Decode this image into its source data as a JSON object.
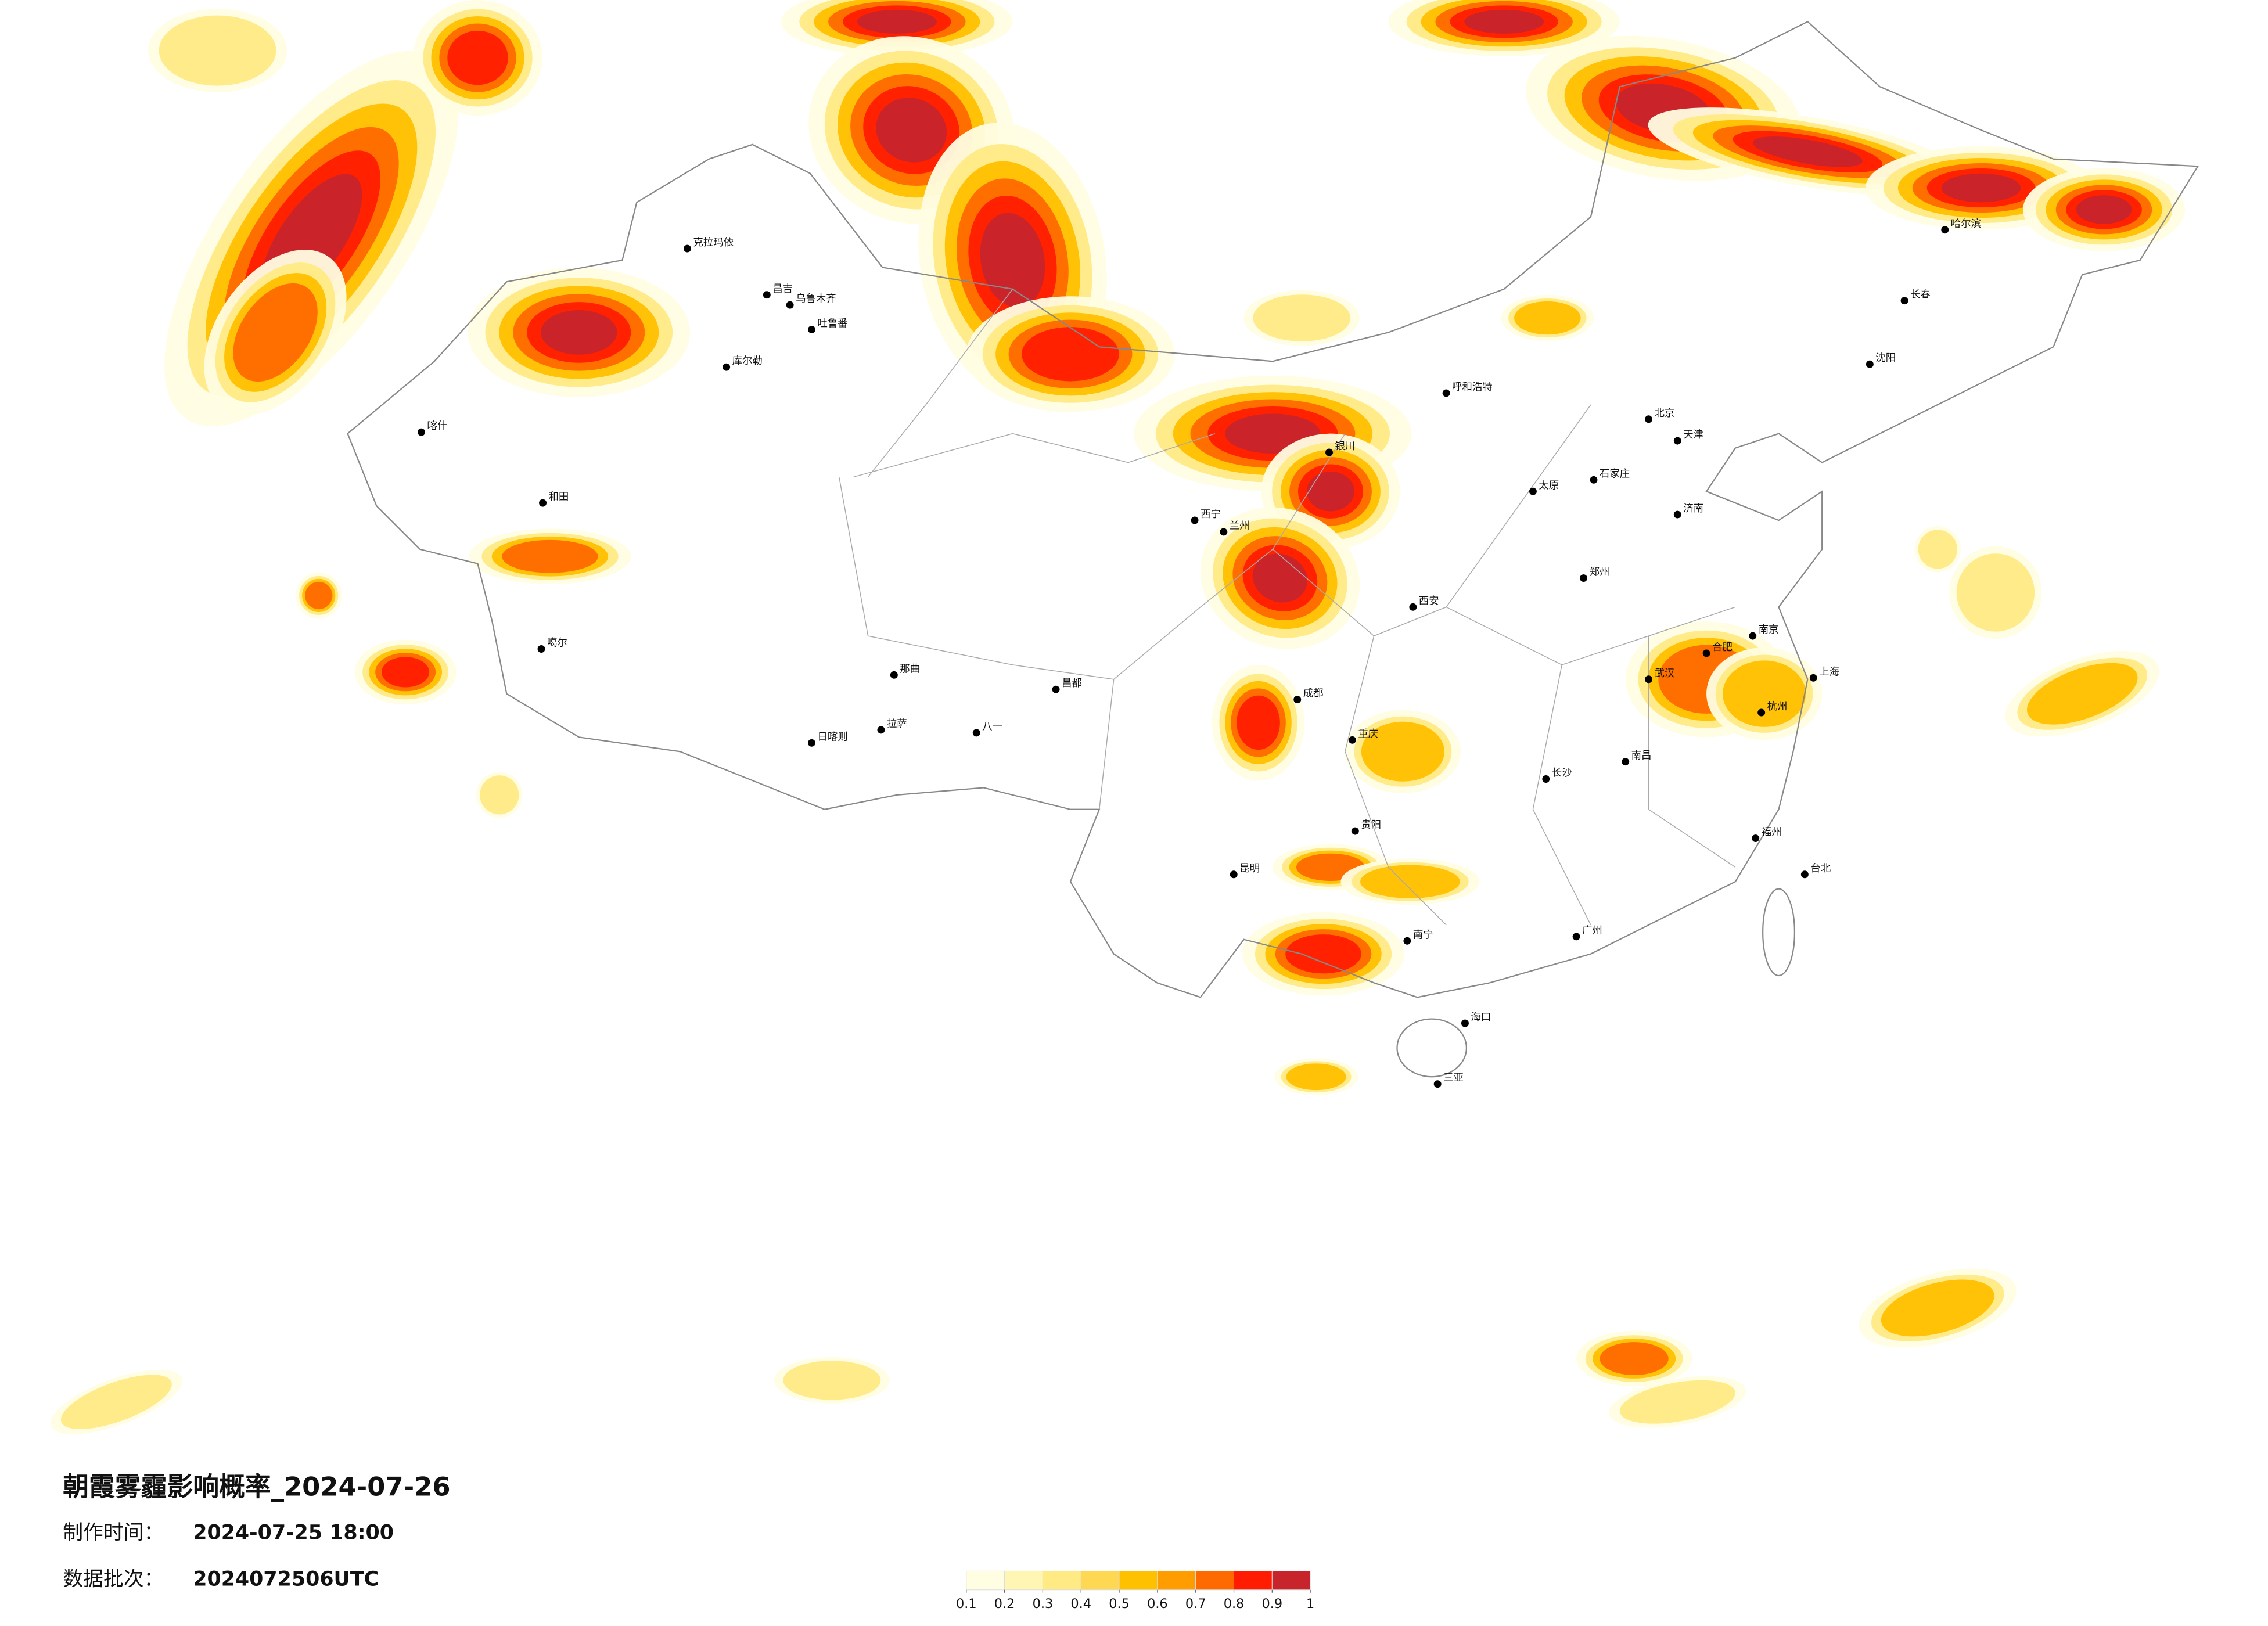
{
  "title": "朝霞雾霾影响概率_2024-07-26",
  "made_time": {
    "label": "制作时间：",
    "value": "2024-07-25 18:00"
  },
  "data_batch": {
    "label": "数据批次：",
    "value": "2024072506UTC"
  },
  "legend": {
    "ticks": [
      0.1,
      0.2,
      0.3,
      0.4,
      0.5,
      0.6,
      0.7,
      0.8,
      0.9,
      1
    ],
    "colors": [
      "#fffde2",
      "#fff6b4",
      "#ffea84",
      "#ffd853",
      "#ffc000",
      "#ff9c00",
      "#ff6a00",
      "#ff1c00",
      "#c8242c"
    ]
  },
  "cities": [
    "克拉玛依",
    "昌吉",
    "乌鲁木齐",
    "吐鲁番",
    "库尔勒",
    "喀什",
    "和田",
    "噶尔",
    "拉萨",
    "日喀则",
    "那曲",
    "昌都",
    "八一",
    "西宁",
    "兰州",
    "银川",
    "呼和浩特",
    "北京",
    "天津",
    "石家庄",
    "太原",
    "济南",
    "郑州",
    "西安",
    "成都",
    "重庆",
    "贵阳",
    "昆明",
    "南宁",
    "广州",
    "长沙",
    "武汉",
    "合肥",
    "南京",
    "上海",
    "杭州",
    "福州",
    "南昌",
    "海口",
    "哈尔滨",
    "长春",
    "沈阳",
    "台北",
    "三亚"
  ]
}
